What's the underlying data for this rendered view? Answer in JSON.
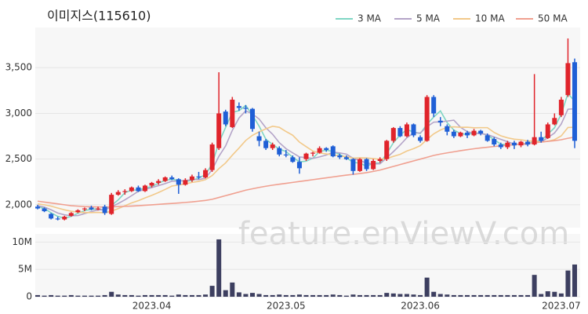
{
  "chart_data": [
    {
      "type": "candlestick",
      "title": "이미지스(115610)",
      "watermark": "feature.enViewV.com",
      "up_color": "#e0242b",
      "down_color": "#1f5fd6",
      "ylim": [
        1750,
        3940
      ],
      "yticks": [
        {
          "value": 2000,
          "label": "2,000"
        },
        {
          "value": 2500,
          "label": "2,500"
        },
        {
          "value": 3000,
          "label": "3,000"
        },
        {
          "value": 3500,
          "label": "3,500"
        }
      ],
      "grid": true,
      "open": [
        1980,
        1960,
        1900,
        1850,
        1840,
        1880,
        1920,
        1950,
        1970,
        1950,
        1980,
        1900,
        2110,
        2140,
        2150,
        2190,
        2150,
        2210,
        2240,
        2260,
        2300,
        2280,
        2220,
        2270,
        2310,
        2300,
        2380,
        2620,
        3020,
        2850,
        3080,
        3060,
        3050,
        2750,
        2700,
        2620,
        2620,
        2550,
        2520,
        2470,
        2500,
        2560,
        2570,
        2620,
        2640,
        2540,
        2520,
        2500,
        2370,
        2500,
        2390,
        2480,
        2500,
        2700,
        2840,
        2750,
        2880,
        2740,
        2700,
        3180,
        2920,
        2860,
        2800,
        2750,
        2790,
        2760,
        2810,
        2760,
        2720,
        2660,
        2630,
        2680,
        2650,
        2690,
        2660,
        2740,
        2730,
        2880,
        2980,
        3200,
        3560
      ],
      "high": [
        2000,
        1970,
        1910,
        1870,
        1880,
        1920,
        1950,
        1970,
        1990,
        1980,
        2000,
        2130,
        2160,
        2170,
        2200,
        2210,
        2220,
        2250,
        2280,
        2310,
        2320,
        2290,
        2290,
        2330,
        2360,
        2400,
        2680,
        3450,
        3040,
        3180,
        3120,
        3090,
        3060,
        2800,
        2720,
        2680,
        2640,
        2600,
        2540,
        2520,
        2570,
        2580,
        2640,
        2630,
        2650,
        2560,
        2540,
        2510,
        2510,
        2510,
        2500,
        2520,
        2710,
        2850,
        2860,
        2900,
        2890,
        2760,
        3200,
        3200,
        2960,
        2880,
        2820,
        2800,
        2810,
        2830,
        2820,
        2780,
        2740,
        2680,
        2700,
        2700,
        2700,
        2710,
        3430,
        2800,
        2900,
        3000,
        3180,
        3820,
        3600
      ],
      "low": [
        1950,
        1920,
        1840,
        1830,
        1830,
        1870,
        1910,
        1930,
        1940,
        1940,
        1890,
        1890,
        2100,
        2110,
        2140,
        2140,
        2140,
        2190,
        2220,
        2250,
        2270,
        2120,
        2210,
        2250,
        2280,
        2290,
        2360,
        2600,
        2860,
        2840,
        3030,
        3000,
        2800,
        2640,
        2600,
        2600,
        2530,
        2520,
        2460,
        2340,
        2480,
        2530,
        2560,
        2580,
        2520,
        2500,
        2490,
        2330,
        2360,
        2370,
        2380,
        2460,
        2480,
        2680,
        2740,
        2740,
        2740,
        2680,
        2690,
        2960,
        2860,
        2760,
        2730,
        2740,
        2730,
        2750,
        2760,
        2690,
        2640,
        2610,
        2610,
        2610,
        2630,
        2640,
        2650,
        2680,
        2720,
        2870,
        2960,
        3180,
        2620
      ],
      "close": [
        1960,
        1930,
        1850,
        1840,
        1870,
        1910,
        1940,
        1960,
        1950,
        1960,
        1910,
        2110,
        2140,
        2150,
        2190,
        2150,
        2210,
        2240,
        2260,
        2300,
        2280,
        2220,
        2270,
        2310,
        2300,
        2380,
        2660,
        3000,
        2880,
        3150,
        3060,
        3050,
        2830,
        2700,
        2620,
        2660,
        2550,
        2540,
        2470,
        2400,
        2560,
        2570,
        2620,
        2600,
        2530,
        2520,
        2500,
        2370,
        2500,
        2390,
        2480,
        2500,
        2700,
        2840,
        2750,
        2880,
        2760,
        2700,
        3180,
        3000,
        2900,
        2800,
        2750,
        2790,
        2760,
        2810,
        2780,
        2700,
        2660,
        2630,
        2680,
        2650,
        2690,
        2660,
        2740,
        2700,
        2880,
        2950,
        3150,
        3550,
        2700
      ],
      "series": [
        {
          "name": "3 MA",
          "color": "#7fd6c4",
          "values": [
            1980,
            1960,
            1913,
            1873,
            1853,
            1873,
            1907,
            1937,
            1950,
            1957,
            1940,
            1993,
            2053,
            2133,
            2160,
            2163,
            2183,
            2200,
            2237,
            2267,
            2280,
            2267,
            2257,
            2267,
            2293,
            2330,
            2447,
            2680,
            2847,
            3010,
            3030,
            3087,
            2980,
            2860,
            2717,
            2660,
            2610,
            2583,
            2520,
            2470,
            2477,
            2510,
            2583,
            2597,
            2583,
            2550,
            2517,
            2463,
            2457,
            2420,
            2457,
            2457,
            2560,
            2680,
            2763,
            2823,
            2797,
            2780,
            2880,
            2960,
            3027,
            2900,
            2817,
            2780,
            2767,
            2787,
            2783,
            2763,
            2713,
            2663,
            2657,
            2653,
            2673,
            2667,
            2697,
            2700,
            2773,
            2843,
            2993,
            3217,
            3133
          ]
        },
        {
          "name": "5 MA",
          "color": "#b4a4c8",
          "values": [
            1990,
            1975,
            1945,
            1910,
            1890,
            1880,
            1882,
            1904,
            1926,
            1944,
            1946,
            1978,
            2014,
            2054,
            2100,
            2148,
            2168,
            2188,
            2210,
            2232,
            2258,
            2260,
            2266,
            2276,
            2276,
            2292,
            2384,
            2530,
            2644,
            2814,
            2950,
            3028,
            2994,
            2938,
            2842,
            2772,
            2680,
            2614,
            2568,
            2524,
            2516,
            2508,
            2524,
            2544,
            2576,
            2568,
            2554,
            2508,
            2484,
            2456,
            2448,
            2448,
            2514,
            2582,
            2654,
            2734,
            2786,
            2786,
            2854,
            2904,
            2908,
            2916,
            2926,
            2848,
            2800,
            2782,
            2778,
            2768,
            2742,
            2716,
            2690,
            2664,
            2662,
            2662,
            2684,
            2688,
            2734,
            2786,
            2884,
            3046,
            3050
          ]
        },
        {
          "name": "10 MA",
          "color": "#f2c98a",
          "values": [
            2010,
            2000,
            1985,
            1965,
            1945,
            1930,
            1920,
            1915,
            1915,
            1917,
            1912,
            1930,
            1958,
            1989,
            2021,
            2045,
            2075,
            2103,
            2134,
            2168,
            2205,
            2216,
            2229,
            2245,
            2256,
            2275,
            2320,
            2396,
            2458,
            2543,
            2621,
            2704,
            2760,
            2799,
            2831,
            2859,
            2848,
            2802,
            2761,
            2686,
            2636,
            2588,
            2567,
            2557,
            2547,
            2533,
            2528,
            2511,
            2514,
            2513,
            2505,
            2498,
            2506,
            2530,
            2552,
            2588,
            2614,
            2647,
            2715,
            2776,
            2818,
            2848,
            2853,
            2848,
            2849,
            2842,
            2844,
            2844,
            2792,
            2755,
            2733,
            2718,
            2712,
            2699,
            2697,
            2686,
            2696,
            2713,
            2754,
            2846,
            2848
          ]
        },
        {
          "name": "50 MA",
          "color": "#f0a090",
          "values": [
            2040,
            2030,
            2020,
            2010,
            2000,
            1990,
            1985,
            1980,
            1978,
            1976,
            1975,
            1978,
            1980,
            1983,
            1986,
            1990,
            1995,
            2000,
            2005,
            2010,
            2015,
            2020,
            2026,
            2032,
            2040,
            2048,
            2060,
            2080,
            2100,
            2120,
            2140,
            2160,
            2175,
            2190,
            2203,
            2215,
            2225,
            2235,
            2245,
            2255,
            2265,
            2275,
            2285,
            2295,
            2305,
            2315,
            2325,
            2333,
            2342,
            2352,
            2365,
            2380,
            2400,
            2420,
            2440,
            2460,
            2480,
            2500,
            2520,
            2540,
            2555,
            2568,
            2580,
            2592,
            2603,
            2613,
            2622,
            2630,
            2638,
            2645,
            2652,
            2658,
            2664,
            2670,
            2678,
            2686,
            2694,
            2702,
            2712,
            2728,
            2740
          ]
        }
      ]
    },
    {
      "type": "bar",
      "color": "#3d3f60",
      "ylim": [
        0,
        11.5
      ],
      "yticks": [
        0,
        {
          "value": 5,
          "label": "5M"
        },
        {
          "value": 10,
          "label": "10M"
        }
      ],
      "categories": [
        null,
        null,
        null,
        null,
        null,
        null,
        null,
        null,
        null,
        null,
        null,
        null,
        null,
        null,
        null,
        null,
        null,
        "2023.04",
        null,
        null,
        null,
        null,
        null,
        null,
        null,
        null,
        null,
        null,
        null,
        null,
        null,
        null,
        null,
        null,
        null,
        null,
        null,
        "2023.05",
        null,
        null,
        null,
        null,
        null,
        null,
        null,
        null,
        null,
        null,
        null,
        null,
        null,
        null,
        null,
        null,
        null,
        null,
        null,
        "2023.06",
        null,
        null,
        null,
        null,
        null,
        null,
        null,
        null,
        null,
        null,
        null,
        null,
        null,
        null,
        null,
        null,
        null,
        null,
        null,
        null,
        "2023.07",
        null,
        null
      ],
      "values": [
        0.3,
        0.2,
        0.3,
        0.2,
        0.2,
        0.3,
        0.2,
        0.2,
        0.2,
        0.2,
        0.3,
        0.9,
        0.4,
        0.3,
        0.3,
        0.2,
        0.3,
        0.3,
        0.3,
        0.3,
        0.2,
        0.4,
        0.3,
        0.3,
        0.3,
        0.4,
        2.0,
        10.5,
        1.2,
        2.6,
        0.8,
        0.5,
        0.7,
        0.5,
        0.3,
        0.3,
        0.4,
        0.3,
        0.3,
        0.4,
        0.3,
        0.3,
        0.3,
        0.3,
        0.4,
        0.3,
        0.2,
        0.4,
        0.3,
        0.3,
        0.3,
        0.3,
        0.7,
        0.6,
        0.5,
        0.5,
        0.4,
        0.3,
        3.5,
        0.9,
        0.5,
        0.4,
        0.3,
        0.3,
        0.3,
        0.3,
        0.3,
        0.3,
        0.3,
        0.3,
        0.3,
        0.3,
        0.3,
        0.3,
        4.0,
        0.5,
        1.0,
        0.9,
        0.6,
        4.8,
        5.9
      ]
    }
  ]
}
